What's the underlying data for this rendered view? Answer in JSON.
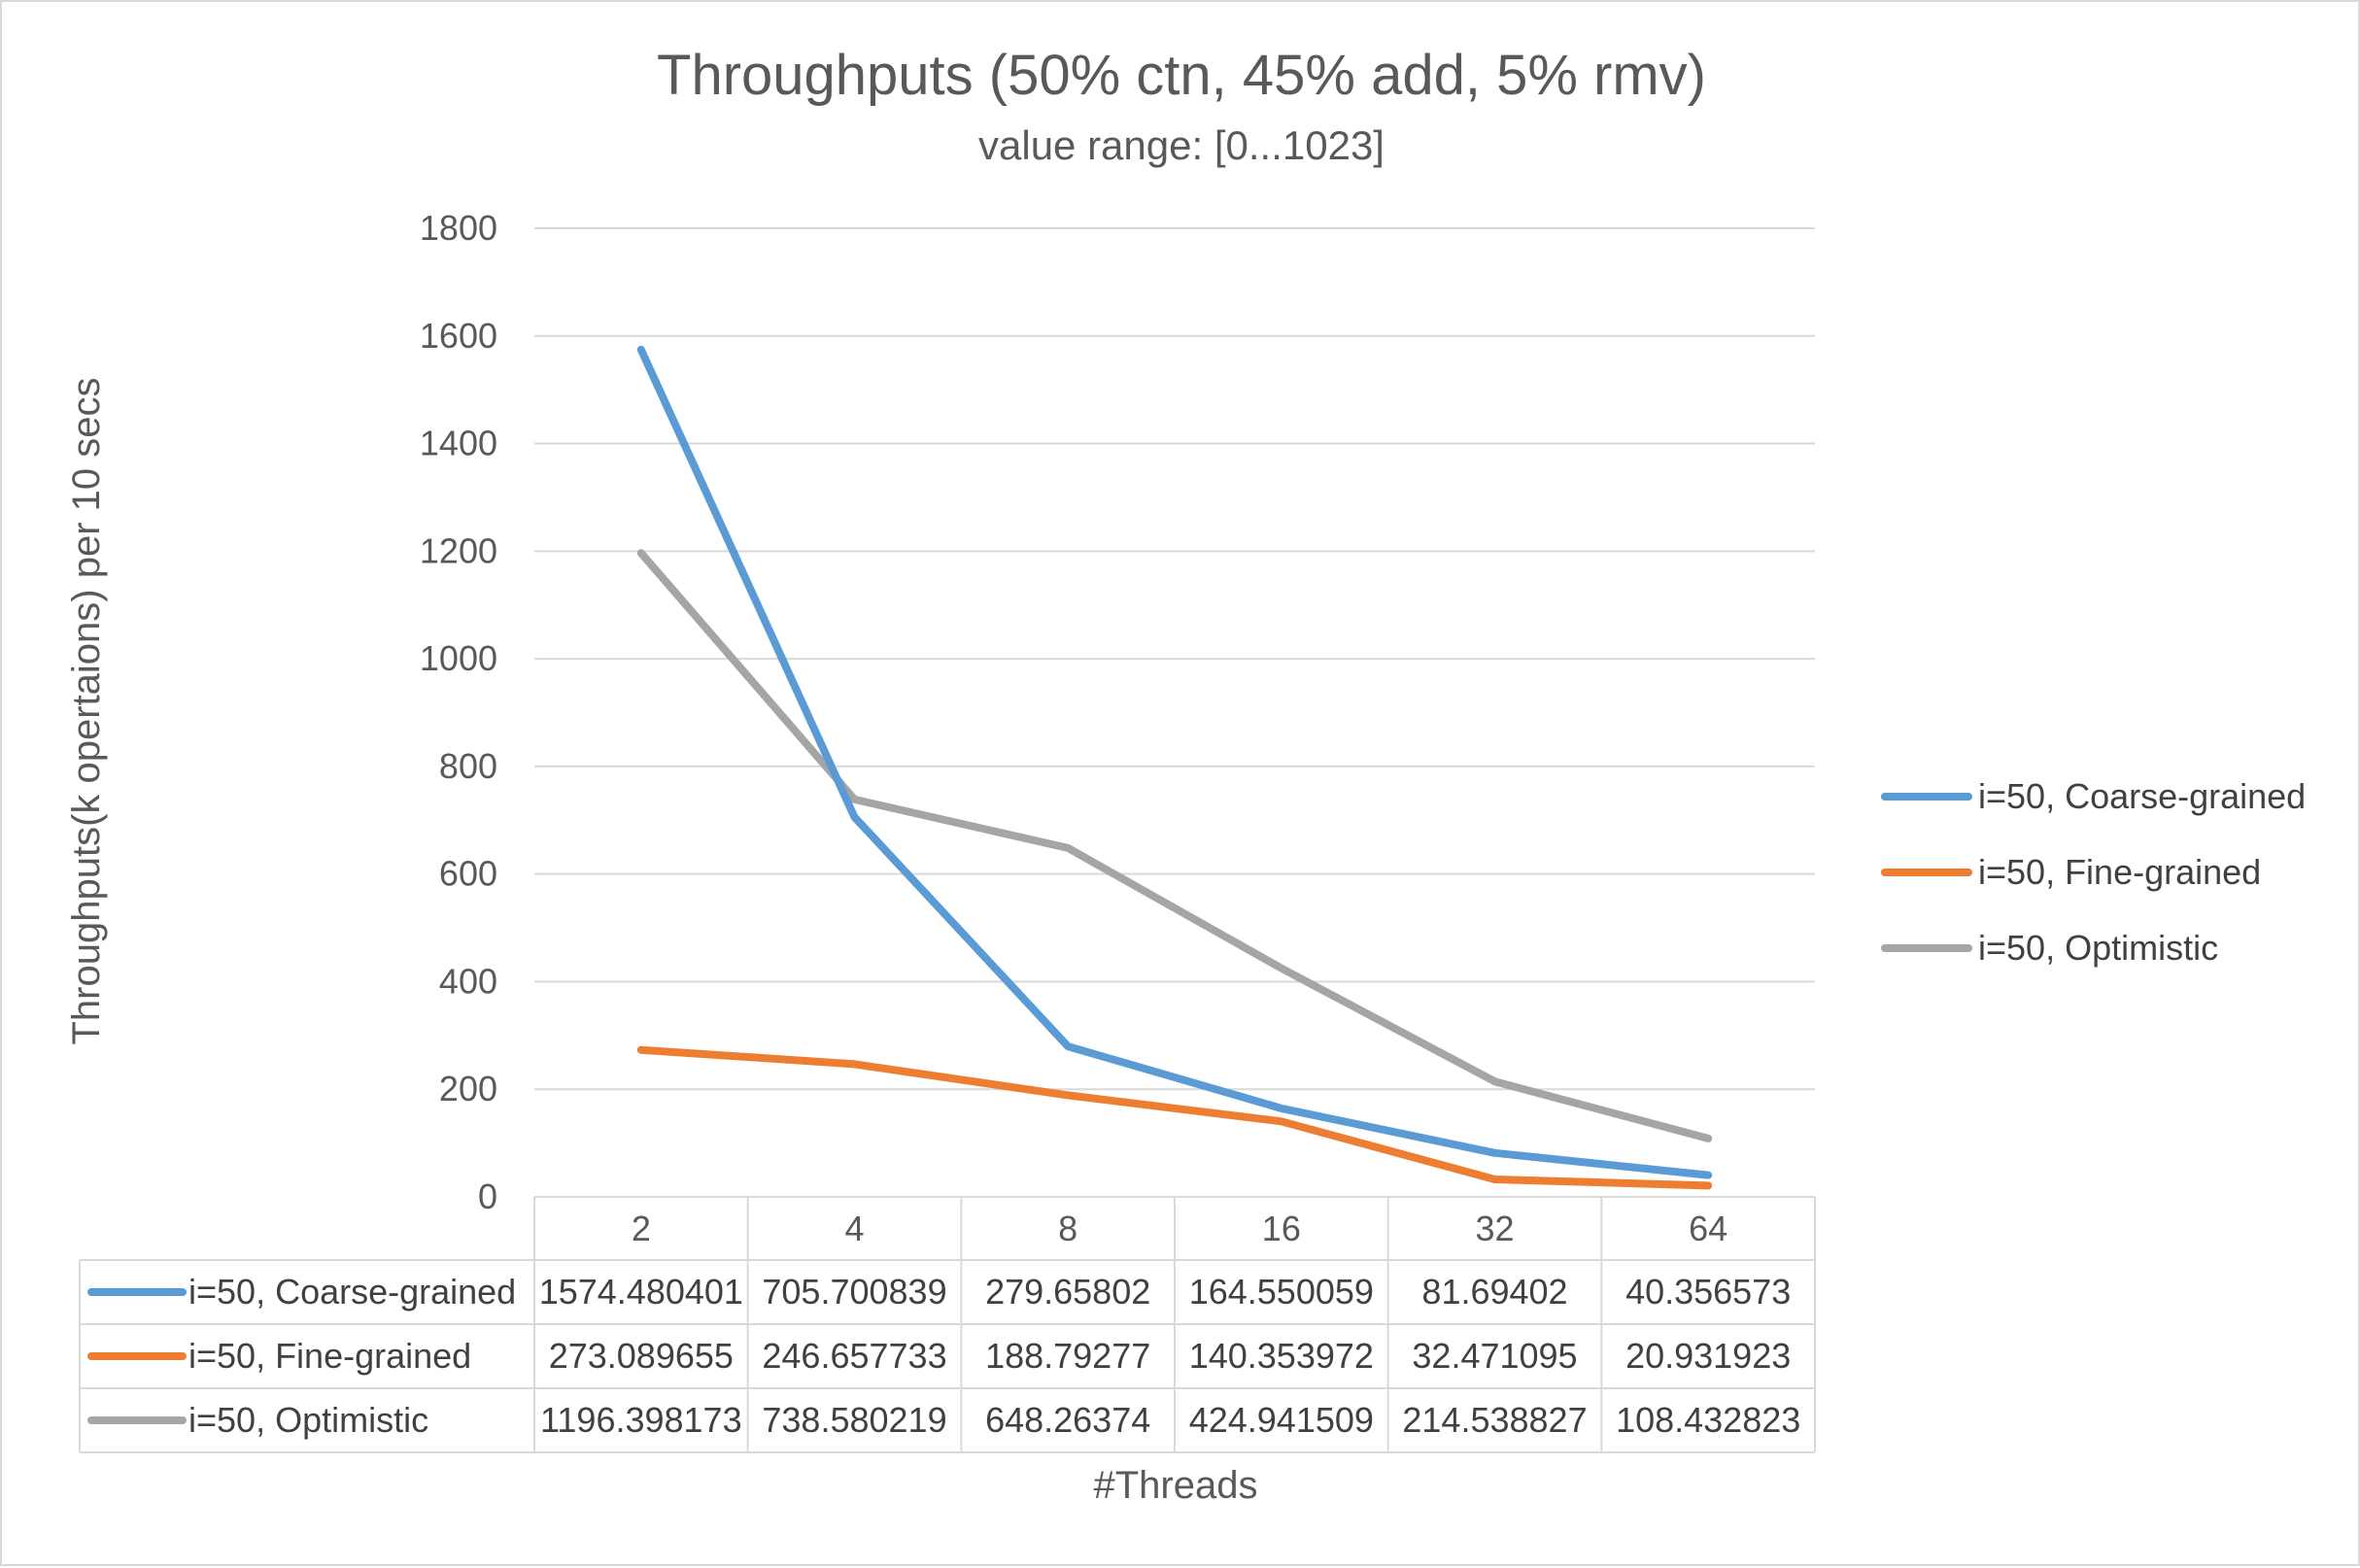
{
  "chart_data": {
    "type": "line",
    "title": "Throughputs (50% ctn, 45% add, 5% rmv)",
    "subtitle": "value range: [0...1023]",
    "xlabel": "#Threads",
    "ylabel": "Throughputs(k opertaions)  per 10 secs",
    "categories": [
      "2",
      "4",
      "8",
      "16",
      "32",
      "64"
    ],
    "ylim": [
      0,
      1800
    ],
    "yticks": [
      0,
      200,
      400,
      600,
      800,
      1000,
      1200,
      1400,
      1600,
      1800
    ],
    "grid": true,
    "legend_position": "right",
    "series": [
      {
        "name": "i=50, Coarse-grained",
        "color": "#5b9bd5",
        "values": [
          1574.480401,
          705.700839,
          279.65802,
          164.550059,
          81.69402,
          40.356573
        ],
        "labels": [
          "1574.480401",
          "705.700839",
          "279.65802",
          "164.550059",
          "81.69402",
          "40.356573"
        ]
      },
      {
        "name": "i=50, Fine-grained",
        "color": "#ed7d31",
        "values": [
          273.089655,
          246.657733,
          188.79277,
          140.353972,
          32.471095,
          20.931923
        ],
        "labels": [
          "273.089655",
          "246.657733",
          "188.79277",
          "140.353972",
          "32.471095",
          "20.931923"
        ]
      },
      {
        "name": "i=50, Optimistic",
        "color": "#a5a5a5",
        "values": [
          1196.398173,
          738.580219,
          648.26374,
          424.941509,
          214.538827,
          108.432823
        ],
        "labels": [
          "1196.398173",
          "738.580219",
          "648.26374",
          "424.941509",
          "214.538827",
          "108.432823"
        ]
      }
    ]
  }
}
